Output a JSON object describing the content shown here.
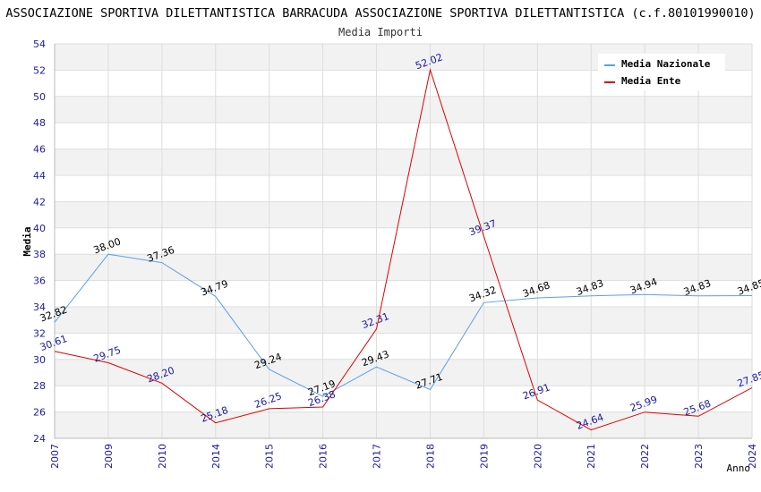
{
  "chart_data": {
    "type": "line",
    "title": "ASSOCIAZIONE SPORTIVA DILETTANTISTICA BARRACUDA ASSOCIAZIONE SPORTIVA DILETTANTISTICA (c.f.80101990010)",
    "subtitle": "Media Importi",
    "xlabel": "Anno",
    "ylabel": "Media",
    "ylim": [
      24,
      54
    ],
    "y_ticks": [
      24,
      26,
      28,
      30,
      32,
      34,
      36,
      38,
      40,
      42,
      44,
      46,
      48,
      50,
      52,
      54
    ],
    "categories": [
      "2007",
      "2009",
      "2010",
      "2014",
      "2015",
      "2016",
      "2017",
      "2018",
      "2019",
      "2020",
      "2021",
      "2022",
      "2023",
      "2024"
    ],
    "series": [
      {
        "name": "Media Nazionale",
        "color": "#5aa0e6",
        "label_color": "#000000",
        "values": [
          32.82,
          38.0,
          37.36,
          34.79,
          29.24,
          27.19,
          29.43,
          27.71,
          34.32,
          34.68,
          34.83,
          34.94,
          34.83,
          34.85
        ],
        "labels": [
          "32.82",
          "38.00",
          "37.36",
          "34.79",
          "29.24",
          "27.19",
          "29.43",
          "27.71",
          "34.32",
          "34.68",
          "34.83",
          "34.94",
          "34.83",
          "34.85"
        ]
      },
      {
        "name": "Media Ente",
        "color": "#e00000",
        "label_color": "#1a1aa6",
        "values": [
          30.61,
          29.75,
          28.2,
          25.18,
          26.25,
          26.38,
          32.31,
          52.02,
          39.37,
          26.91,
          24.64,
          25.99,
          25.68,
          27.85
        ],
        "labels": [
          "30.61",
          "29.75",
          "28.20",
          "25.18",
          "26.25",
          "26.38",
          "32.31",
          "52.02",
          "39.37",
          "26.91",
          "24.64",
          "25.99",
          "25.68",
          "27.85"
        ]
      }
    ],
    "grid": true,
    "band_colors": [
      "#f2f2f2",
      "#ffffff"
    ],
    "axis_label_color": "#1a1aa6",
    "legend_position": "top-right"
  }
}
